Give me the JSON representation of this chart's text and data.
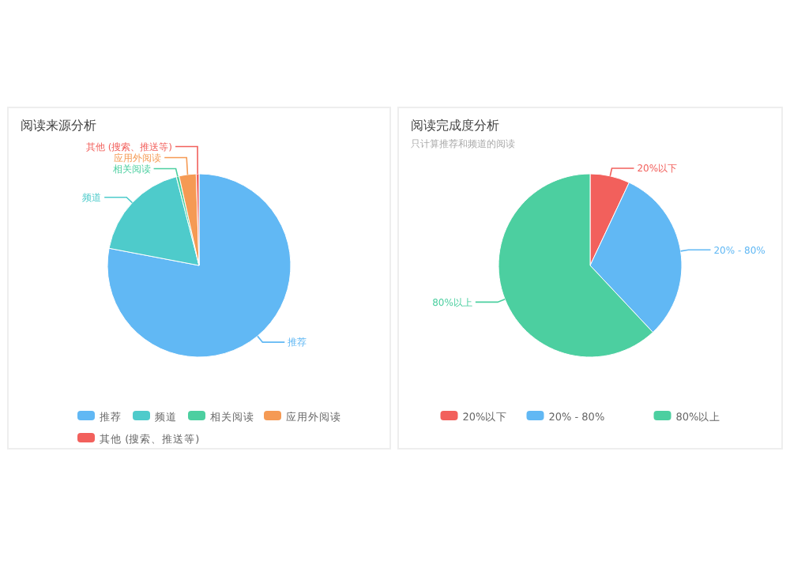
{
  "chart_data": [
    {
      "type": "pie",
      "title": "阅读来源分析",
      "legend": "bottom",
      "categories": [
        "推荐",
        "频道",
        "相关阅读",
        "应用外阅读",
        "其他 (搜索、推送等)"
      ],
      "values": [
        78,
        18,
        0.5,
        3,
        0.5
      ],
      "colors": [
        "#61b8f4",
        "#4ecbcb",
        "#4ccfa0",
        "#f59a54",
        "#f2605c"
      ]
    },
    {
      "type": "pie",
      "title": "阅读完成度分析",
      "subtitle": "只计算推荐和频道的阅读",
      "legend": "bottom",
      "categories": [
        "20%以下",
        "20% - 80%",
        "80%以上"
      ],
      "values": [
        7,
        31,
        62
      ],
      "colors": [
        "#f2605c",
        "#61b8f4",
        "#4ccfa0"
      ]
    }
  ]
}
